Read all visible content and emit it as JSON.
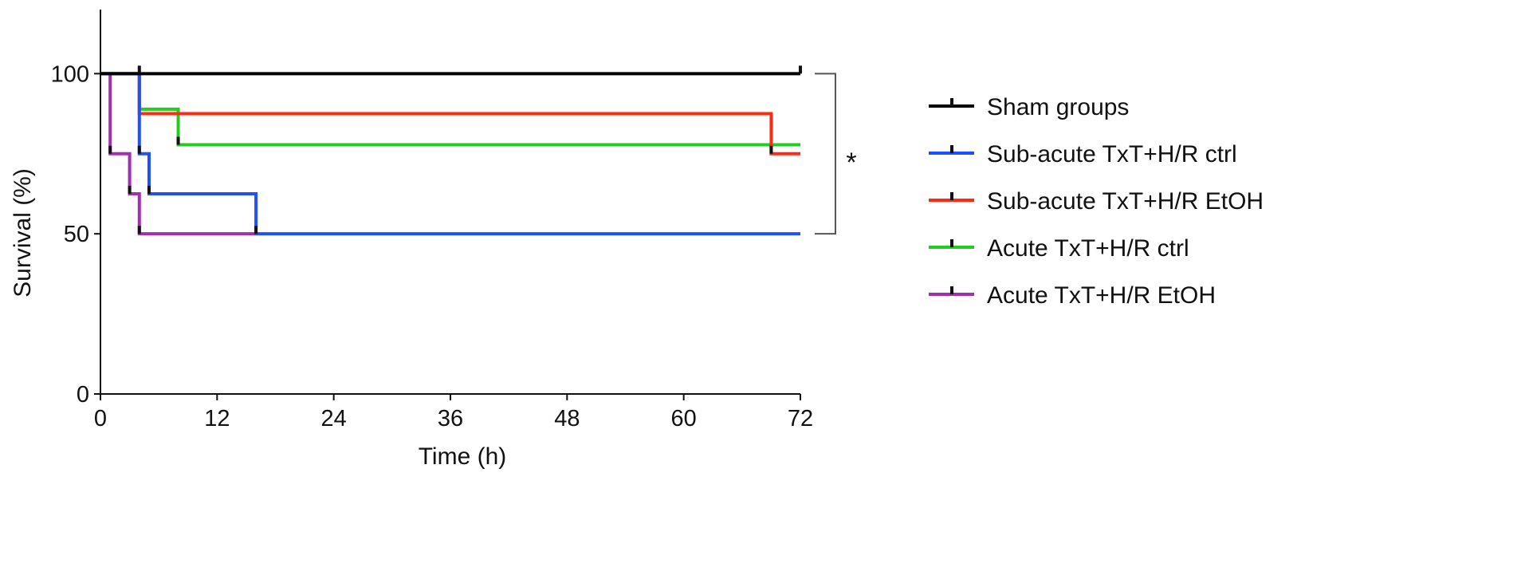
{
  "chart_data": {
    "type": "line",
    "subtype": "kaplan-meier-survival",
    "title": "",
    "xlabel": "Time (h)",
    "ylabel": "Survival (%)",
    "xlim": [
      0,
      72
    ],
    "ylim": [
      0,
      120
    ],
    "x_ticks": [
      0,
      12,
      24,
      36,
      48,
      60,
      72
    ],
    "y_ticks": [
      0,
      50,
      100
    ],
    "grid": false,
    "legend_position": "right",
    "series": [
      {
        "name": "Sham groups",
        "color": "#000000",
        "steps": [
          [
            0,
            100
          ],
          [
            72,
            100
          ]
        ],
        "censor": [
          [
            4,
            100
          ],
          [
            72,
            100
          ]
        ]
      },
      {
        "name": "Sub-acute TxT+H/R ctrl",
        "color": "#1f4fff",
        "steps": [
          [
            0,
            100
          ],
          [
            4,
            100
          ],
          [
            4,
            75
          ],
          [
            5,
            75
          ],
          [
            5,
            62.5
          ],
          [
            16,
            62.5
          ],
          [
            16,
            50
          ],
          [
            72,
            50
          ]
        ],
        "censor": [
          [
            4,
            75
          ],
          [
            5,
            62.5
          ],
          [
            16,
            50
          ]
        ]
      },
      {
        "name": "Sub-acute TxT+H/R EtOH",
        "color": "#ff2a10",
        "steps": [
          [
            0,
            100
          ],
          [
            4,
            100
          ],
          [
            4,
            87.5
          ],
          [
            69,
            87.5
          ],
          [
            69,
            75
          ],
          [
            72,
            75
          ]
        ],
        "censor": [
          [
            69,
            75
          ]
        ]
      },
      {
        "name": "Acute TxT+H/R ctrl",
        "color": "#22cc22",
        "steps": [
          [
            0,
            100
          ],
          [
            4,
            100
          ],
          [
            4,
            88.9
          ],
          [
            8,
            88.9
          ],
          [
            8,
            77.8
          ],
          [
            72,
            77.8
          ]
        ],
        "censor": [
          [
            8,
            77.8
          ]
        ]
      },
      {
        "name": "Acute TxT+H/R EtOH",
        "color": "#a030b0",
        "steps": [
          [
            0,
            100
          ],
          [
            1,
            100
          ],
          [
            1,
            75
          ],
          [
            3,
            75
          ],
          [
            3,
            62.5
          ],
          [
            4,
            62.5
          ],
          [
            4,
            50
          ],
          [
            16,
            50
          ]
        ],
        "censor": [
          [
            1,
            75
          ],
          [
            3,
            62.5
          ],
          [
            4,
            50
          ]
        ]
      }
    ],
    "annotations": [
      {
        "text": "*",
        "bracket_from": 100,
        "bracket_to": 50
      }
    ]
  }
}
